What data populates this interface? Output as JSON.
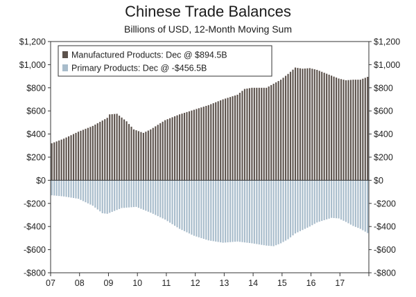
{
  "header": {
    "title": "Chinese Trade Balances",
    "subtitle": "Billions of USD, 12-Month Moving Sum"
  },
  "colors": {
    "manufactured": "#5c524c",
    "primary": "#a8bccb",
    "axis": "#333333"
  },
  "chart_data": {
    "type": "bar",
    "title": "Chinese Trade Balances",
    "subtitle": "Billions of USD, 12-Month Moving Sum",
    "xlabel": "",
    "ylabel": "",
    "ylim": [
      -800,
      1200
    ],
    "yticks": [
      -800,
      -600,
      -400,
      -200,
      0,
      200,
      400,
      600,
      800,
      1000,
      1200
    ],
    "ytick_labels": [
      "-$800",
      "-$600",
      "-$400",
      "-$200",
      "$0",
      "$200",
      "$400",
      "$600",
      "$800",
      "$1,000",
      "$1,200"
    ],
    "xtick_labels": [
      "07",
      "08",
      "09",
      "10",
      "11",
      "12",
      "13",
      "14",
      "15",
      "16",
      "17"
    ],
    "grid": false,
    "legend_position": "top-left",
    "frequency": "monthly",
    "period": "Jan 2007 - Dec 2017",
    "series": [
      {
        "name": "Manufactured Products: Dec @ $894.5B",
        "anchors": [
          [
            "2007-01",
            320
          ],
          [
            "2007-06",
            360
          ],
          [
            "2007-12",
            420
          ],
          [
            "2008-06",
            470
          ],
          [
            "2008-12",
            540
          ],
          [
            "2009-01",
            570
          ],
          [
            "2009-04",
            575
          ],
          [
            "2009-08",
            510
          ],
          [
            "2009-11",
            440
          ],
          [
            "2010-03",
            410
          ],
          [
            "2010-06",
            440
          ],
          [
            "2010-12",
            520
          ],
          [
            "2011-06",
            570
          ],
          [
            "2011-12",
            610
          ],
          [
            "2012-06",
            650
          ],
          [
            "2012-12",
            700
          ],
          [
            "2013-06",
            740
          ],
          [
            "2013-09",
            790
          ],
          [
            "2013-12",
            800
          ],
          [
            "2014-06",
            800
          ],
          [
            "2014-12",
            870
          ],
          [
            "2015-03",
            920
          ],
          [
            "2015-06",
            975
          ],
          [
            "2015-09",
            965
          ],
          [
            "2015-12",
            970
          ],
          [
            "2016-03",
            955
          ],
          [
            "2016-06",
            930
          ],
          [
            "2016-09",
            905
          ],
          [
            "2016-12",
            880
          ],
          [
            "2017-03",
            865
          ],
          [
            "2017-06",
            870
          ],
          [
            "2017-09",
            870
          ],
          [
            "2017-12",
            894.5
          ]
        ]
      },
      {
        "name": "Primary Products: Dec @ -$456.5B",
        "anchors": [
          [
            "2007-01",
            -130
          ],
          [
            "2007-06",
            -140
          ],
          [
            "2007-12",
            -160
          ],
          [
            "2008-06",
            -220
          ],
          [
            "2008-10",
            -285
          ],
          [
            "2008-12",
            -290
          ],
          [
            "2009-03",
            -265
          ],
          [
            "2009-06",
            -240
          ],
          [
            "2009-12",
            -230
          ],
          [
            "2010-06",
            -280
          ],
          [
            "2010-12",
            -340
          ],
          [
            "2011-06",
            -420
          ],
          [
            "2011-12",
            -480
          ],
          [
            "2012-06",
            -520
          ],
          [
            "2012-12",
            -540
          ],
          [
            "2013-06",
            -530
          ],
          [
            "2013-12",
            -545
          ],
          [
            "2014-06",
            -565
          ],
          [
            "2014-09",
            -570
          ],
          [
            "2014-12",
            -545
          ],
          [
            "2015-03",
            -510
          ],
          [
            "2015-06",
            -460
          ],
          [
            "2015-12",
            -400
          ],
          [
            "2016-03",
            -365
          ],
          [
            "2016-06",
            -345
          ],
          [
            "2016-09",
            -325
          ],
          [
            "2016-12",
            -330
          ],
          [
            "2017-03",
            -360
          ],
          [
            "2017-06",
            -395
          ],
          [
            "2017-09",
            -420
          ],
          [
            "2017-12",
            -456.5
          ]
        ]
      }
    ]
  }
}
